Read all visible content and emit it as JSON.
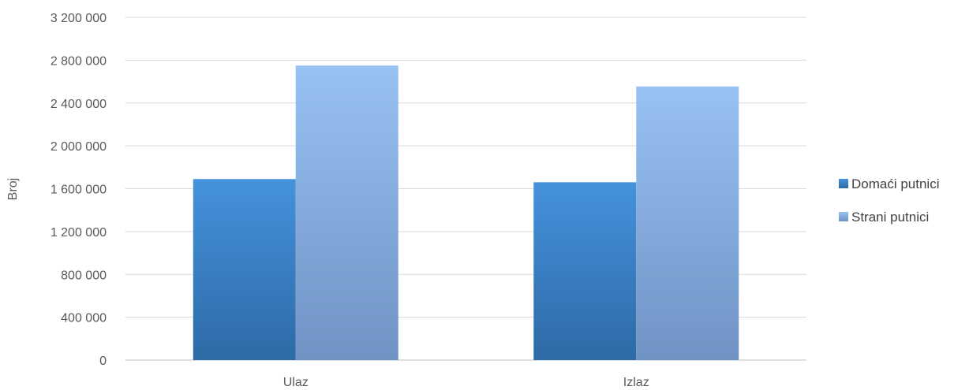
{
  "chart_data": {
    "type": "bar",
    "title": "",
    "xlabel": "",
    "ylabel": "Broj",
    "categories": [
      "Ulaz",
      "Izlaz"
    ],
    "series": [
      {
        "name": "Domaći putnici",
        "values": [
          1690000,
          1660000
        ],
        "color": "#3f7fc4"
      },
      {
        "name": "Strani putnici",
        "values": [
          2750000,
          2555000
        ],
        "color": "#85aee0"
      }
    ],
    "ylim": [
      0,
      3200000
    ],
    "yticks": [
      0,
      400000,
      800000,
      1200000,
      1600000,
      2000000,
      2400000,
      2800000,
      3200000
    ],
    "ytick_labels": [
      "0",
      "400 000",
      "800 000",
      "1 200 000",
      "1 600 000",
      "2 000 000",
      "2 400 000",
      "2 800 000",
      "3 200 000"
    ],
    "grid": true,
    "legend_position": "right"
  }
}
